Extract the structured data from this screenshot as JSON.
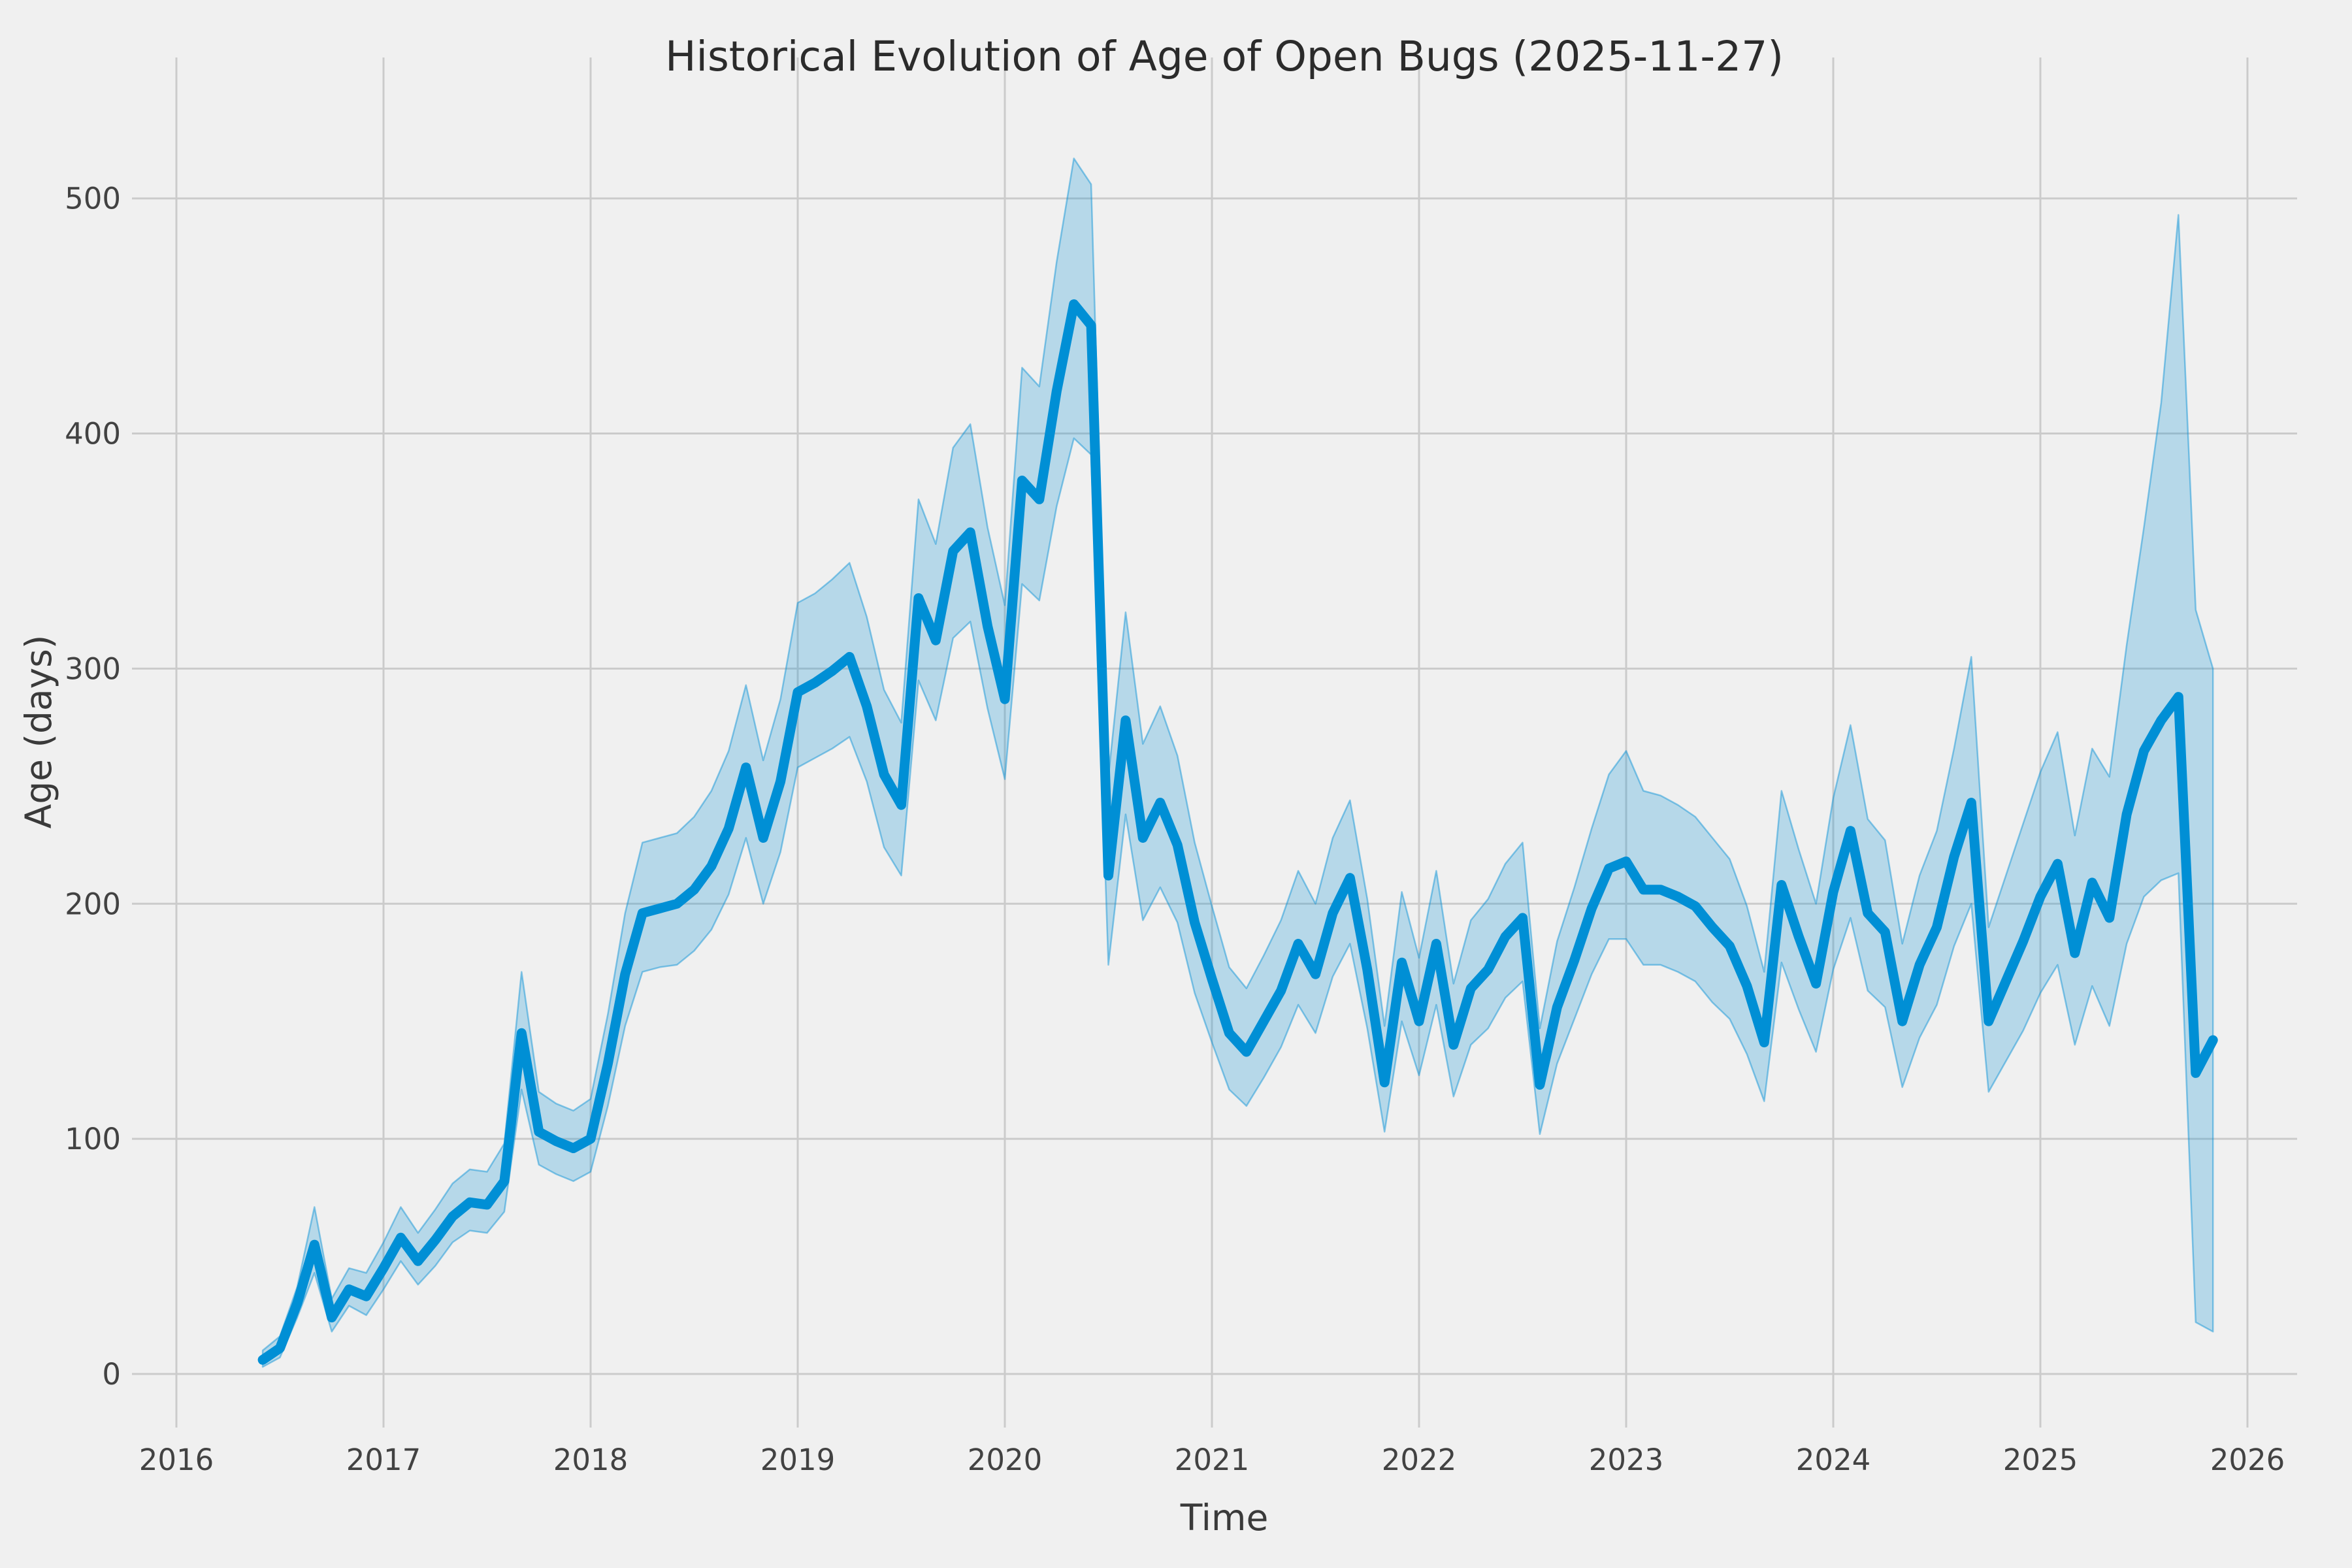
{
  "style": {
    "background_color": "#f0f0f0",
    "grid_color": "#cbcbcb",
    "accent_color": "#008fd5",
    "band_fill_opacity": 0.24,
    "band_edge_opacity": 0.45,
    "text_color": "#424242"
  },
  "chart_data": {
    "type": "line",
    "title": "Historical Evolution of Age of Open Bugs (2025-11-27)",
    "xlabel": "Time",
    "ylabel": "Age (days)",
    "grid": true,
    "legend": false,
    "x_tick_labels": [
      "2016",
      "2017",
      "2018",
      "2019",
      "2020",
      "2021",
      "2022",
      "2023",
      "2024",
      "2025",
      "2026"
    ],
    "x_tick_years": [
      2016,
      2017,
      2018,
      2019,
      2020,
      2021,
      2022,
      2023,
      2024,
      2025,
      2026
    ],
    "y_tick_labels": [
      "0",
      "100",
      "200",
      "300",
      "400",
      "500"
    ],
    "y_tick_values": [
      0,
      100,
      200,
      300,
      400,
      500
    ],
    "xlim": [
      2015.89,
      2026.24
    ],
    "ylim": [
      -13,
      560
    ],
    "series": {
      "line": {
        "months": [
          "2016-06",
          "2016-07",
          "2016-08",
          "2016-09",
          "2016-10",
          "2016-11",
          "2016-12",
          "2017-01",
          "2017-02",
          "2017-03",
          "2017-04",
          "2017-05",
          "2017-06",
          "2017-07",
          "2017-08",
          "2017-09",
          "2017-10",
          "2017-11",
          "2017-12",
          "2018-01",
          "2018-02",
          "2018-03",
          "2018-04",
          "2018-05",
          "2018-06",
          "2018-07",
          "2018-08",
          "2018-09",
          "2018-10",
          "2018-11",
          "2018-12",
          "2019-01",
          "2019-02",
          "2019-03",
          "2019-04",
          "2019-05",
          "2019-06",
          "2019-07",
          "2019-08",
          "2019-09",
          "2019-10",
          "2019-11",
          "2019-12",
          "2020-01",
          "2020-02",
          "2020-03",
          "2020-04",
          "2020-05",
          "2020-06",
          "2020-07",
          "2020-08",
          "2020-09",
          "2020-10",
          "2020-11",
          "2020-12",
          "2021-01",
          "2021-02",
          "2021-03",
          "2021-04",
          "2021-05",
          "2021-06",
          "2021-07",
          "2021-08",
          "2021-09",
          "2021-10",
          "2021-11",
          "2021-12",
          "2022-01",
          "2022-02",
          "2022-03",
          "2022-04",
          "2022-05",
          "2022-06",
          "2022-07",
          "2022-08",
          "2022-09",
          "2022-10",
          "2022-11",
          "2022-12",
          "2023-01",
          "2023-02",
          "2023-03",
          "2023-04",
          "2023-05",
          "2023-06",
          "2023-07",
          "2023-08",
          "2023-09",
          "2023-10",
          "2023-11",
          "2023-12",
          "2024-01",
          "2024-02",
          "2024-03",
          "2024-04",
          "2024-05",
          "2024-06",
          "2024-07",
          "2024-08",
          "2024-09",
          "2024-10",
          "2024-11",
          "2024-12",
          "2025-01",
          "2025-02",
          "2025-03",
          "2025-04",
          "2025-05",
          "2025-06",
          "2025-07",
          "2025-08",
          "2025-09",
          "2025-10",
          "2025-11"
        ],
        "values": [
          6,
          11,
          30,
          55,
          24,
          36,
          33,
          45,
          58,
          48,
          57,
          67,
          73,
          72,
          82,
          145,
          103,
          99,
          96,
          100,
          132,
          170,
          196,
          198,
          200,
          206,
          216,
          232,
          258,
          228,
          252,
          290,
          294,
          299,
          305,
          284,
          255,
          242,
          330,
          312,
          350,
          358,
          318,
          287,
          380,
          372,
          418,
          455,
          446,
          212,
          278,
          228,
          243,
          225,
          192,
          168,
          145,
          137,
          150,
          163,
          183,
          170,
          196,
          211,
          172,
          124,
          175,
          150,
          183,
          140,
          164,
          172,
          186,
          194,
          123,
          156,
          176,
          198,
          215,
          218,
          206,
          206,
          203,
          199,
          190,
          182,
          165,
          141,
          208,
          186,
          166,
          205,
          231,
          196,
          188,
          150,
          174,
          190,
          220,
          243,
          150,
          167,
          184,
          203,
          217,
          179,
          209,
          194,
          238,
          265,
          278,
          288,
          128,
          142
        ]
      },
      "band": {
        "upper": [
          10,
          16,
          37,
          71,
          32,
          45,
          43,
          56,
          71,
          60,
          70,
          81,
          87,
          86,
          98,
          171,
          120,
          115,
          112,
          117,
          153,
          196,
          226,
          228,
          230,
          237,
          248,
          265,
          293,
          261,
          287,
          328,
          332,
          338,
          345,
          322,
          291,
          277,
          372,
          353,
          394,
          404,
          360,
          327,
          428,
          420,
          473,
          517,
          506,
          254,
          324,
          268,
          284,
          263,
          226,
          199,
          173,
          164,
          178,
          193,
          214,
          200,
          228,
          244,
          202,
          148,
          205,
          177,
          214,
          166,
          193,
          202,
          217,
          226,
          147,
          184,
          207,
          232,
          255,
          265,
          248,
          246,
          242,
          237,
          228,
          219,
          199,
          171,
          248,
          223,
          200,
          245,
          276,
          236,
          227,
          183,
          212,
          231,
          266,
          305,
          190,
          212,
          234,
          256,
          273,
          229,
          266,
          254,
          310,
          360,
          413,
          493,
          325,
          300
        ],
        "lower": [
          3,
          7,
          24,
          43,
          18,
          29,
          25,
          36,
          48,
          38,
          46,
          56,
          61,
          60,
          69,
          121,
          89,
          85,
          82,
          86,
          114,
          148,
          171,
          173,
          174,
          180,
          189,
          204,
          228,
          200,
          222,
          258,
          262,
          266,
          271,
          252,
          224,
          212,
          295,
          278,
          313,
          320,
          283,
          253,
          336,
          329,
          369,
          398,
          391,
          174,
          238,
          193,
          207,
          192,
          162,
          141,
          121,
          114,
          126,
          139,
          157,
          145,
          169,
          183,
          147,
          103,
          150,
          127,
          157,
          118,
          140,
          147,
          160,
          167,
          102,
          132,
          151,
          170,
          185,
          185,
          174,
          174,
          171,
          167,
          158,
          151,
          136,
          116,
          175,
          155,
          137,
          172,
          194,
          163,
          156,
          122,
          143,
          157,
          182,
          200,
          120,
          133,
          146,
          162,
          174,
          140,
          165,
          148,
          183,
          203,
          210,
          213,
          22,
          18
        ]
      }
    }
  }
}
